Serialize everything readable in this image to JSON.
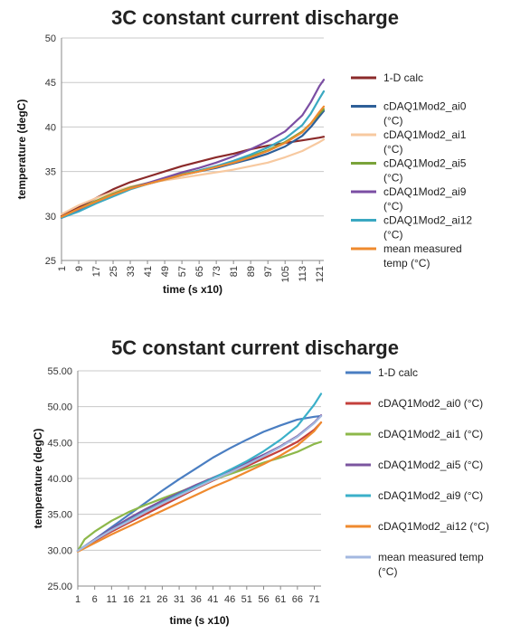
{
  "chart_data": [
    {
      "type": "line",
      "title": "3C constant current discharge",
      "xlabel": "time (s  x10)",
      "ylabel": "temperature (degC)",
      "ylim": [
        25,
        50
      ],
      "yticks": [
        "25",
        "30",
        "35",
        "40",
        "45",
        "50"
      ],
      "xlim": [
        1,
        123
      ],
      "xticks": [
        "1",
        "9",
        "17",
        "25",
        "33",
        "41",
        "49",
        "57",
        "65",
        "73",
        "81",
        "89",
        "97",
        "105",
        "113",
        "121"
      ],
      "grid": true,
      "legend_position": "right",
      "series": [
        {
          "name": "1-D calc",
          "color": "#8b2a2a",
          "x": [
            1,
            9,
            17,
            25,
            33,
            41,
            49,
            57,
            65,
            73,
            81,
            89,
            97,
            105,
            113,
            121,
            123
          ],
          "y": [
            30.0,
            31.0,
            32.0,
            33.0,
            33.8,
            34.4,
            35.0,
            35.6,
            36.1,
            36.6,
            37.0,
            37.5,
            37.9,
            38.2,
            38.5,
            38.8,
            38.9
          ]
        },
        {
          "name": "cDAQ1Mod2_ai0 (°C)",
          "color": "#2e5f98",
          "x": [
            1,
            9,
            17,
            25,
            33,
            41,
            49,
            57,
            65,
            73,
            81,
            89,
            97,
            105,
            113,
            117,
            121,
            123
          ],
          "y": [
            29.8,
            30.6,
            31.5,
            32.4,
            33.1,
            33.6,
            34.1,
            34.6,
            35.0,
            35.4,
            35.9,
            36.4,
            37.0,
            37.8,
            39.0,
            40.0,
            41.2,
            41.8
          ]
        },
        {
          "name": "cDAQ1Mod2_ai1 (°C)",
          "color": "#f7c9a0",
          "x": [
            1,
            9,
            17,
            25,
            33,
            41,
            49,
            57,
            65,
            73,
            81,
            89,
            97,
            105,
            113,
            117,
            121,
            123
          ],
          "y": [
            30.2,
            31.2,
            32.0,
            32.7,
            33.3,
            33.7,
            34.0,
            34.3,
            34.6,
            34.9,
            35.2,
            35.6,
            36.0,
            36.6,
            37.3,
            37.8,
            38.3,
            38.6
          ]
        },
        {
          "name": "cDAQ1Mod2_ai5 (°C)",
          "color": "#7aa33a",
          "x": [
            1,
            9,
            17,
            25,
            33,
            41,
            49,
            57,
            65,
            73,
            81,
            89,
            97,
            105,
            113,
            117,
            121,
            123
          ],
          "y": [
            29.9,
            30.8,
            31.7,
            32.5,
            33.2,
            33.7,
            34.2,
            34.7,
            35.1,
            35.6,
            36.1,
            36.7,
            37.4,
            38.3,
            39.5,
            40.4,
            41.5,
            42.0
          ]
        },
        {
          "name": "cDAQ1Mod2_ai9 (°C)",
          "color": "#7b4ea3",
          "x": [
            1,
            9,
            17,
            25,
            33,
            41,
            49,
            57,
            65,
            73,
            81,
            89,
            97,
            105,
            113,
            117,
            121,
            123
          ],
          "y": [
            29.8,
            30.6,
            31.5,
            32.4,
            33.1,
            33.7,
            34.3,
            34.9,
            35.4,
            36.0,
            36.7,
            37.5,
            38.4,
            39.5,
            41.3,
            42.8,
            44.6,
            45.3
          ]
        },
        {
          "name": "cDAQ1Mod2_ai12 (°C)",
          "color": "#3aa8c1",
          "x": [
            1,
            9,
            17,
            25,
            33,
            41,
            49,
            57,
            65,
            73,
            81,
            89,
            97,
            105,
            113,
            117,
            121,
            123
          ],
          "y": [
            29.8,
            30.5,
            31.4,
            32.2,
            33.0,
            33.6,
            34.1,
            34.6,
            35.1,
            35.6,
            36.2,
            36.9,
            37.7,
            38.7,
            40.2,
            41.5,
            43.2,
            44.0
          ]
        },
        {
          "name": "mean measured temp (°C)",
          "color": "#ef8a2e",
          "x": [
            1,
            9,
            17,
            25,
            33,
            41,
            49,
            57,
            65,
            73,
            81,
            89,
            97,
            105,
            113,
            117,
            121,
            123
          ],
          "y": [
            29.9,
            30.8,
            31.6,
            32.4,
            33.1,
            33.6,
            34.1,
            34.6,
            35.0,
            35.5,
            36.0,
            36.6,
            37.3,
            38.2,
            39.4,
            40.4,
            41.7,
            42.3
          ]
        }
      ]
    },
    {
      "type": "line",
      "title": "5C constant current discharge",
      "xlabel": "time (s  x10)",
      "ylabel": "temperature (degC)",
      "ylim": [
        25,
        55
      ],
      "yticks": [
        "25.00",
        "30.00",
        "35.00",
        "40.00",
        "45.00",
        "50.00",
        "55.00"
      ],
      "xlim": [
        1,
        73
      ],
      "xticks": [
        "1",
        "6",
        "11",
        "16",
        "21",
        "26",
        "31",
        "36",
        "41",
        "46",
        "51",
        "56",
        "61",
        "66",
        "71"
      ],
      "grid": true,
      "legend_position": "right",
      "series": [
        {
          "name": "1-D calc",
          "color": "#4a7ec2",
          "x": [
            1,
            6,
            11,
            16,
            21,
            26,
            31,
            36,
            41,
            46,
            51,
            56,
            61,
            66,
            71,
            73
          ],
          "y": [
            29.9,
            31.5,
            33.2,
            34.9,
            36.6,
            38.3,
            39.9,
            41.4,
            42.9,
            44.2,
            45.4,
            46.5,
            47.4,
            48.2,
            48.6,
            48.7
          ]
        },
        {
          "name": "cDAQ1Mod2_ai0 (°C)",
          "color": "#c4403c",
          "x": [
            1,
            6,
            11,
            16,
            21,
            26,
            31,
            36,
            41,
            46,
            51,
            56,
            61,
            66,
            71,
            73
          ],
          "y": [
            29.9,
            31.3,
            32.6,
            33.8,
            35.0,
            36.2,
            37.4,
            38.6,
            39.7,
            40.7,
            41.7,
            42.8,
            43.9,
            45.1,
            46.8,
            47.8
          ]
        },
        {
          "name": "cDAQ1Mod2_ai1 (°C)",
          "color": "#8db84a",
          "x": [
            1,
            3,
            6,
            11,
            16,
            21,
            26,
            31,
            36,
            41,
            46,
            51,
            56,
            61,
            66,
            71,
            73
          ],
          "y": [
            29.9,
            31.5,
            32.6,
            34.1,
            35.3,
            36.3,
            37.2,
            38.1,
            39.0,
            39.8,
            40.6,
            41.4,
            42.2,
            42.9,
            43.7,
            44.8,
            45.1
          ]
        },
        {
          "name": "cDAQ1Mod2_ai5 (°C)",
          "color": "#7b559f",
          "x": [
            1,
            6,
            11,
            16,
            21,
            26,
            31,
            36,
            41,
            46,
            51,
            56,
            61,
            66,
            71,
            73
          ],
          "y": [
            29.9,
            31.5,
            33.0,
            34.4,
            35.7,
            36.9,
            38.0,
            39.1,
            40.1,
            41.1,
            42.2,
            43.3,
            44.5,
            45.9,
            47.8,
            48.8
          ]
        },
        {
          "name": "cDAQ1Mod2_ai9 (°C)",
          "color": "#3bb0c9",
          "x": [
            1,
            6,
            11,
            16,
            21,
            26,
            31,
            36,
            41,
            46,
            51,
            56,
            61,
            66,
            71,
            73
          ],
          "y": [
            29.9,
            31.4,
            32.8,
            34.1,
            35.4,
            36.6,
            37.8,
            38.9,
            40.0,
            41.2,
            42.4,
            43.8,
            45.4,
            47.3,
            50.3,
            51.8
          ]
        },
        {
          "name": "cDAQ1Mod2_ai12 (°C)",
          "color": "#ef8a2e",
          "x": [
            1,
            6,
            11,
            16,
            21,
            26,
            31,
            36,
            41,
            46,
            51,
            56,
            61,
            66,
            71,
            73
          ],
          "y": [
            29.8,
            31.0,
            32.2,
            33.3,
            34.4,
            35.5,
            36.6,
            37.7,
            38.8,
            39.8,
            40.9,
            42.0,
            43.2,
            44.6,
            46.6,
            47.8
          ]
        },
        {
          "name": "mean measured temp (°C)",
          "color": "#a3b8e0",
          "x": [
            1,
            6,
            11,
            16,
            21,
            26,
            31,
            36,
            41,
            46,
            51,
            56,
            61,
            66,
            71,
            73
          ],
          "y": [
            29.9,
            31.4,
            32.8,
            34.0,
            35.3,
            36.5,
            37.6,
            38.7,
            39.8,
            40.8,
            41.9,
            43.1,
            44.4,
            45.8,
            47.7,
            48.7
          ]
        }
      ]
    }
  ]
}
